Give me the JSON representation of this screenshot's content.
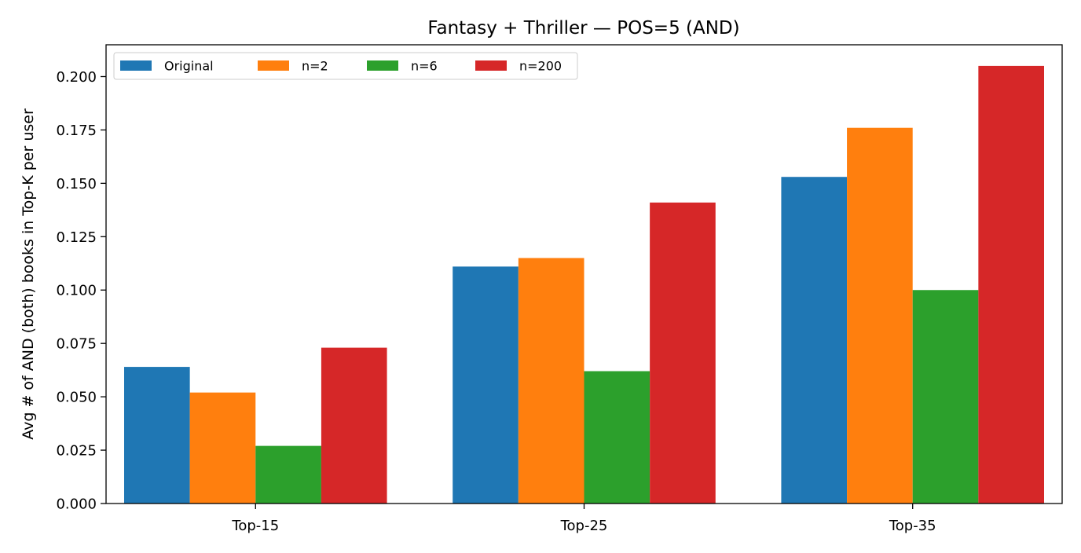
{
  "chart_data": {
    "type": "bar",
    "title": "Fantasy + Thriller — POS=5 (AND)",
    "xlabel": "",
    "ylabel": "Avg # of AND (both) books in Top-K per user",
    "categories": [
      "Top-15",
      "Top-25",
      "Top-35"
    ],
    "series": [
      {
        "name": "Original",
        "color": "#1f77b4",
        "values": [
          0.064,
          0.111,
          0.153
        ]
      },
      {
        "name": "n=2",
        "color": "#ff7f0e",
        "values": [
          0.052,
          0.115,
          0.176
        ]
      },
      {
        "name": "n=6",
        "color": "#2ca02c",
        "values": [
          0.027,
          0.062,
          0.1
        ]
      },
      {
        "name": "n=200",
        "color": "#d62728",
        "values": [
          0.073,
          0.141,
          0.205
        ]
      }
    ],
    "ylim": [
      0,
      0.2149
    ],
    "yticks": [
      0,
      0.025,
      0.05,
      0.075,
      0.1,
      0.125,
      0.15,
      0.175,
      0.2
    ],
    "ytick_labels": [
      "0.000",
      "0.025",
      "0.050",
      "0.075",
      "0.100",
      "0.125",
      "0.150",
      "0.175",
      "0.200"
    ],
    "grid": false,
    "legend": {
      "placement": "top-left",
      "columns": 4
    }
  }
}
